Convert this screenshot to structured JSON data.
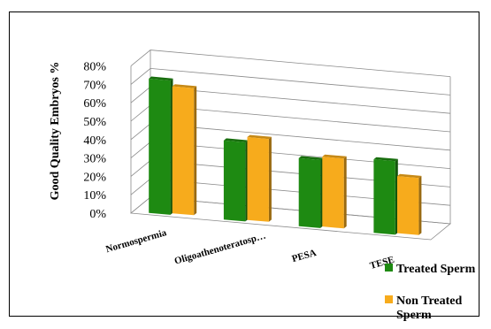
{
  "chart_data": {
    "type": "bar",
    "categories": [
      "Normospermia",
      "Oligoathenoteratosp…",
      "PESA",
      "TESE"
    ],
    "series": [
      {
        "name": "Treated Sperm",
        "values": [
          73,
          43,
          37,
          40
        ],
        "color": "#1e8a12"
      },
      {
        "name": "Non Treated Sperm",
        "values": [
          69,
          45,
          38,
          31
        ],
        "color": "#f7ab1c"
      }
    ],
    "title": "",
    "xlabel": "",
    "ylabel": "Good Quality Embryos %",
    "ylim": [
      0,
      80
    ],
    "yticks": [
      "0%",
      "10%",
      "20%",
      "30%",
      "40%",
      "50%",
      "60%",
      "70%",
      "80%"
    ],
    "grid": true,
    "legend_position": "bottom-right"
  }
}
